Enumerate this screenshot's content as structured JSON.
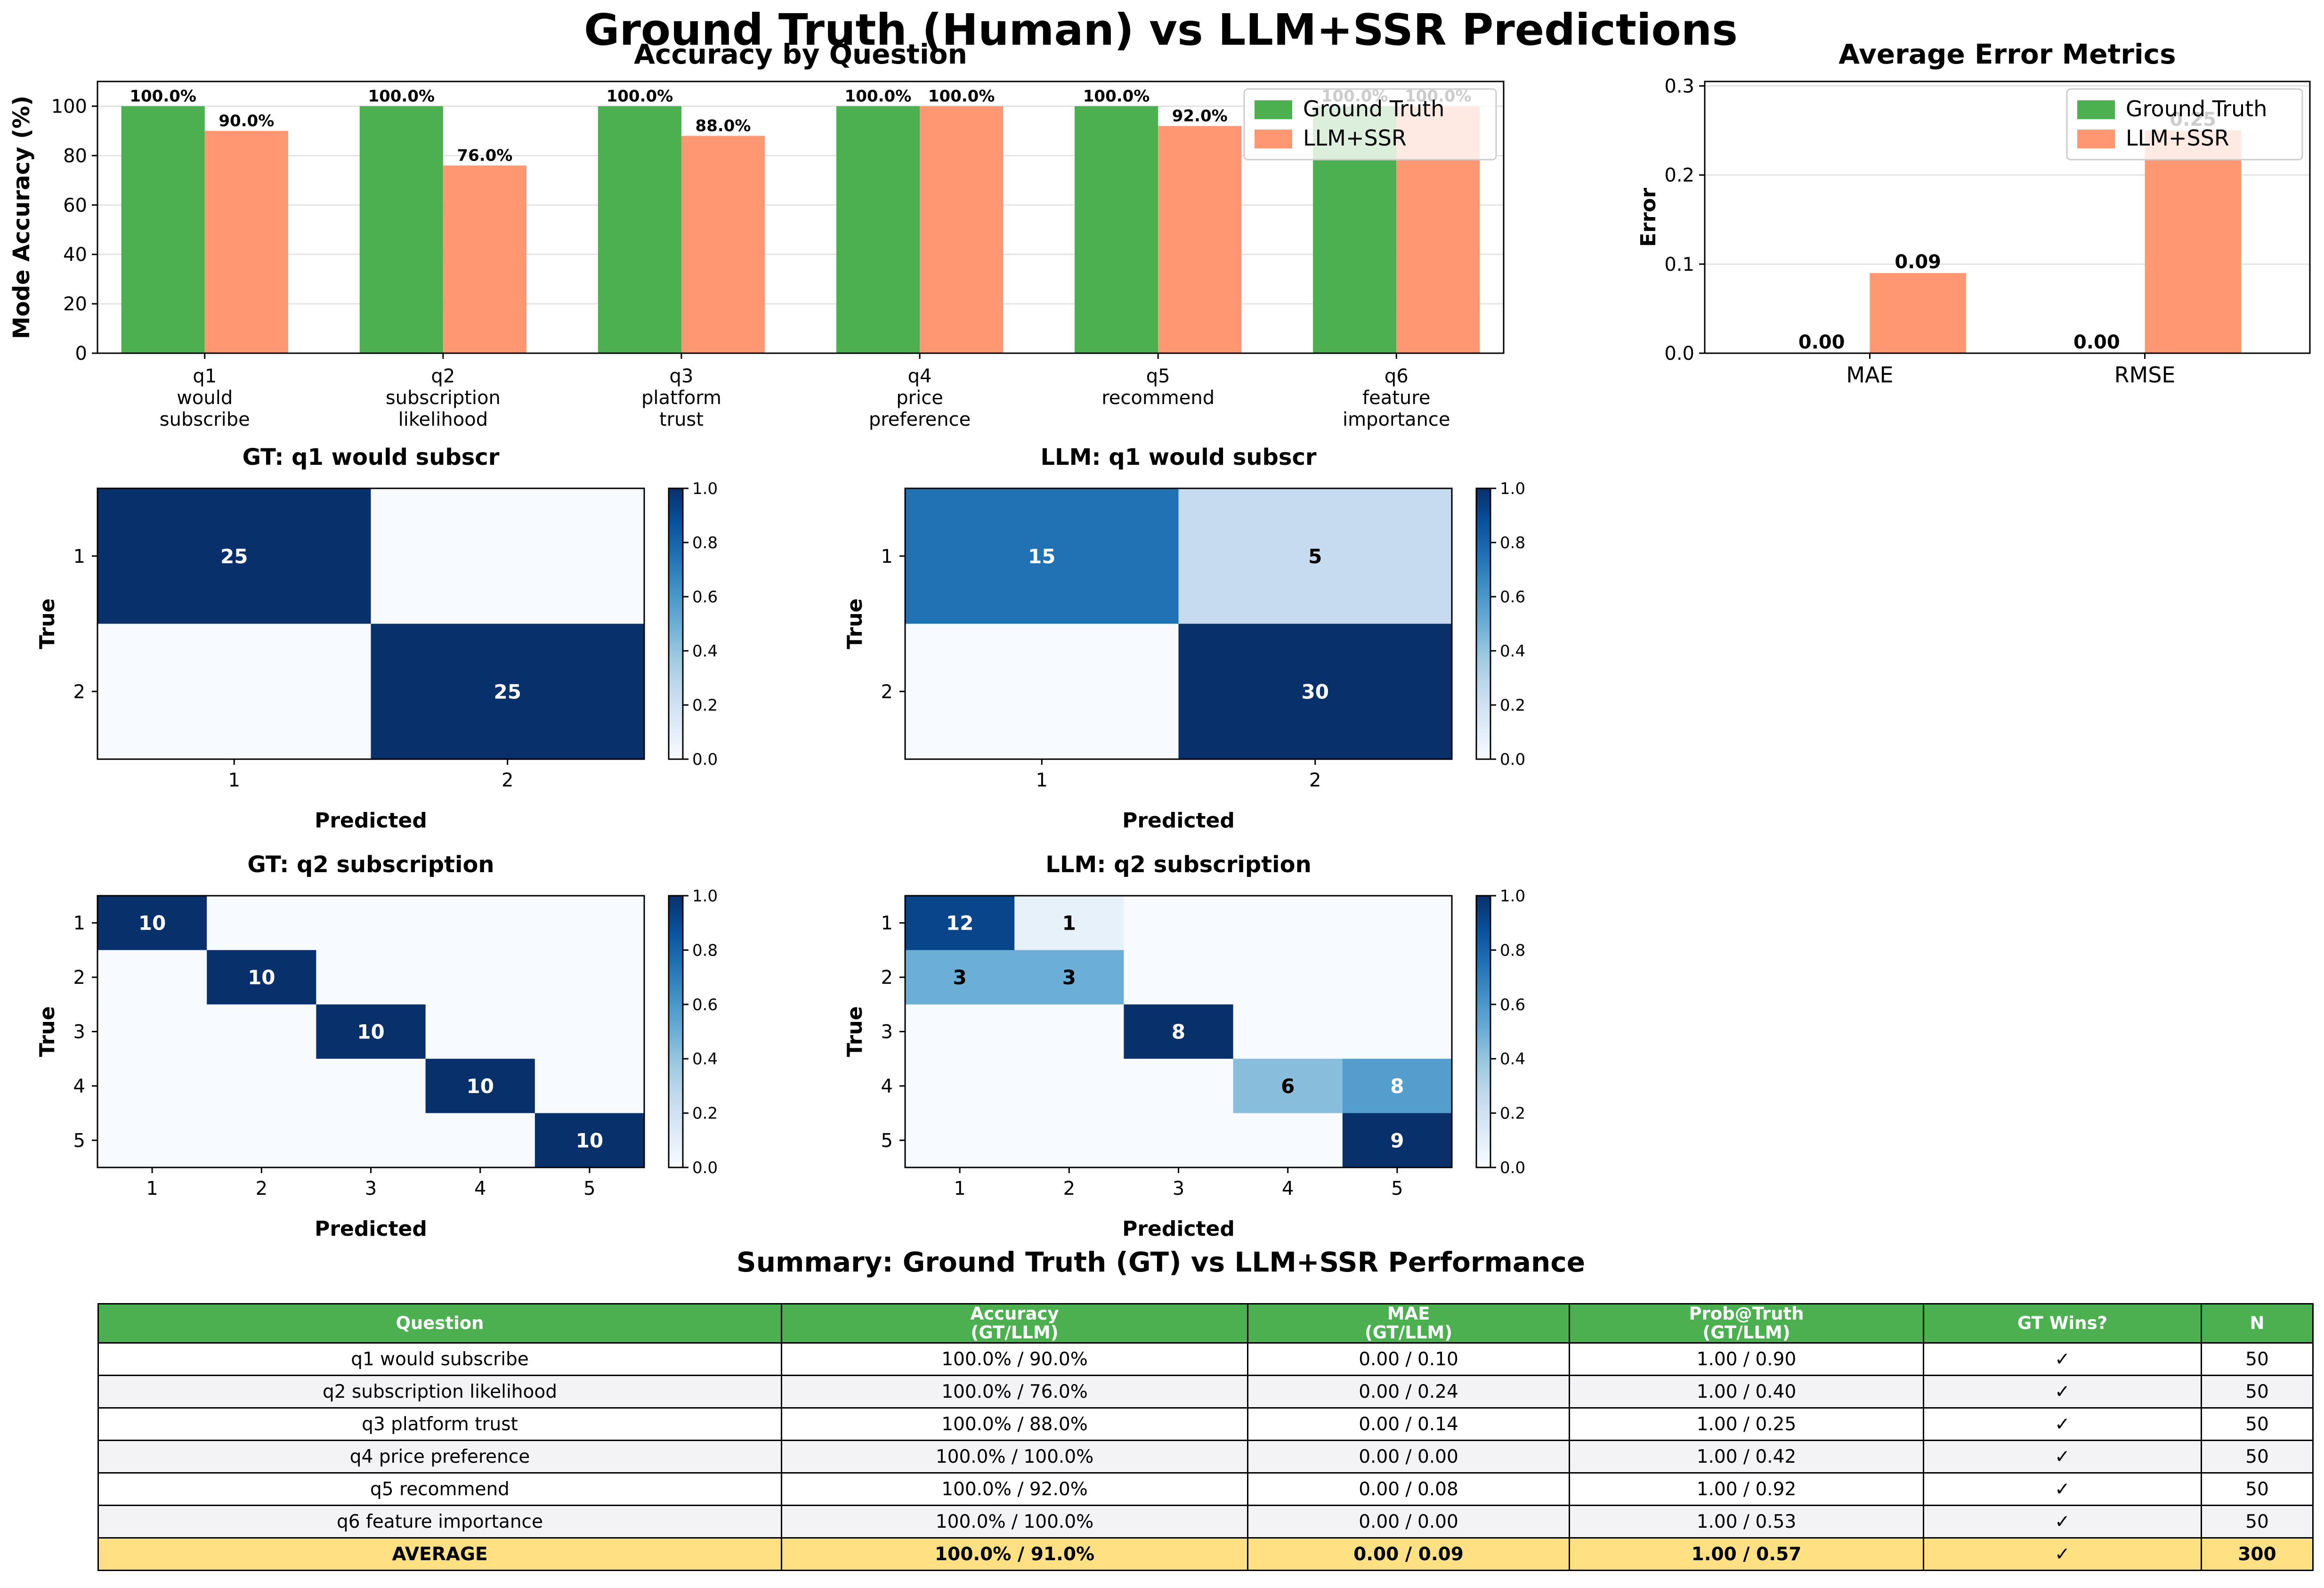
{
  "figure_title": "Ground Truth (Human) vs LLM+SSR Predictions",
  "colors": {
    "ground_truth": "#4caf50",
    "llm": "#ff9872",
    "cm_low": "#f7fbff",
    "cm_high": "#08306b",
    "avg_row": "#ffe082"
  },
  "chart_data": [
    {
      "id": "accuracy",
      "type": "bar",
      "title": "Accuracy by Question",
      "xlabel": "",
      "ylabel": "Mode Accuracy (%)",
      "ylim": [
        0,
        110
      ],
      "yticks": [
        0,
        20,
        40,
        60,
        80,
        100
      ],
      "grid": true,
      "legend": "top-right",
      "categories": [
        "q1\nwould\nsubscribe",
        "q2\nsubscription\nlikelihood",
        "q3\nplatform\ntrust",
        "q4\nprice\npreference",
        "q5\nrecommend",
        "q6\nfeature\nimportance"
      ],
      "series": [
        {
          "name": "Ground Truth",
          "values": [
            100.0,
            100.0,
            100.0,
            100.0,
            100.0,
            100.0
          ],
          "labels": [
            "100.0%",
            "100.0%",
            "100.0%",
            "100.0%",
            "100.0%",
            "100.0%"
          ]
        },
        {
          "name": "LLM+SSR",
          "values": [
            90.0,
            76.0,
            88.0,
            100.0,
            92.0,
            100.0
          ],
          "labels": [
            "90.0%",
            "76.0%",
            "88.0%",
            "100.0%",
            "92.0%",
            "100.0%"
          ]
        }
      ]
    },
    {
      "id": "errors",
      "type": "bar",
      "title": "Average Error Metrics",
      "xlabel": "",
      "ylabel": "Error",
      "ylim": [
        0,
        0.305
      ],
      "yticks": [
        0.0,
        0.1,
        0.2,
        0.3
      ],
      "grid": true,
      "legend": "top-right",
      "categories": [
        "MAE",
        "RMSE"
      ],
      "series": [
        {
          "name": "Ground Truth",
          "values": [
            0.0,
            0.0
          ],
          "labels": [
            "0.00",
            "0.00"
          ]
        },
        {
          "name": "LLM+SSR",
          "values": [
            0.09,
            0.25
          ],
          "labels": [
            "0.09",
            "0.25"
          ]
        }
      ]
    },
    {
      "id": "cm_gt_q1",
      "type": "heatmap",
      "title": "GT: q1 would subscr",
      "xlabel": "Predicted",
      "ylabel": "True",
      "labels": [
        "1",
        "2"
      ],
      "colorbar_ticks": [
        "0.0",
        "0.2",
        "0.4",
        "0.6",
        "0.8",
        "1.0"
      ],
      "matrix": [
        [
          25,
          0
        ],
        [
          0,
          25
        ]
      ],
      "shown_cells": [
        [
          1,
          0
        ],
        [
          0,
          1
        ]
      ],
      "intensity": [
        [
          1.0,
          0.0
        ],
        [
          0.0,
          1.0
        ]
      ]
    },
    {
      "id": "cm_llm_q1",
      "type": "heatmap",
      "title": "LLM: q1 would subscr",
      "xlabel": "Predicted",
      "ylabel": "True",
      "labels": [
        "1",
        "2"
      ],
      "colorbar_ticks": [
        "0.0",
        "0.2",
        "0.4",
        "0.6",
        "0.8",
        "1.0"
      ],
      "matrix": [
        [
          15,
          5
        ],
        [
          0,
          30
        ]
      ],
      "shown_cells": [
        [
          1,
          1
        ],
        [
          0,
          1
        ]
      ],
      "intensity": [
        [
          0.75,
          0.25
        ],
        [
          0.0,
          1.0
        ]
      ]
    },
    {
      "id": "cm_gt_q2",
      "type": "heatmap",
      "title": "GT: q2 subscription",
      "xlabel": "Predicted",
      "ylabel": "True",
      "labels": [
        "1",
        "2",
        "3",
        "4",
        "5"
      ],
      "colorbar_ticks": [
        "0.0",
        "0.2",
        "0.4",
        "0.6",
        "0.8",
        "1.0"
      ],
      "matrix": [
        [
          10,
          0,
          0,
          0,
          0
        ],
        [
          0,
          10,
          0,
          0,
          0
        ],
        [
          0,
          0,
          10,
          0,
          0
        ],
        [
          0,
          0,
          0,
          10,
          0
        ],
        [
          0,
          0,
          0,
          0,
          10
        ]
      ],
      "shown_cells": [
        [
          1,
          0,
          0,
          0,
          0
        ],
        [
          0,
          1,
          0,
          0,
          0
        ],
        [
          0,
          0,
          1,
          0,
          0
        ],
        [
          0,
          0,
          0,
          1,
          0
        ],
        [
          0,
          0,
          0,
          0,
          1
        ]
      ],
      "intensity": [
        [
          1,
          0,
          0,
          0,
          0
        ],
        [
          0,
          1,
          0,
          0,
          0
        ],
        [
          0,
          0,
          1,
          0,
          0
        ],
        [
          0,
          0,
          0,
          1,
          0
        ],
        [
          0,
          0,
          0,
          0,
          1
        ]
      ]
    },
    {
      "id": "cm_llm_q2",
      "type": "heatmap",
      "title": "LLM: q2 subscription",
      "xlabel": "Predicted",
      "ylabel": "True",
      "labels": [
        "1",
        "2",
        "3",
        "4",
        "5"
      ],
      "colorbar_ticks": [
        "0.0",
        "0.2",
        "0.4",
        "0.6",
        "0.8",
        "1.0"
      ],
      "matrix": [
        [
          12,
          1,
          0,
          0,
          0
        ],
        [
          3,
          3,
          0,
          0,
          0
        ],
        [
          0,
          0,
          8,
          0,
          0
        ],
        [
          0,
          0,
          0,
          6,
          8
        ],
        [
          0,
          0,
          0,
          0,
          9
        ]
      ],
      "shown_cells": [
        [
          1,
          1,
          0,
          0,
          0
        ],
        [
          1,
          1,
          0,
          0,
          0
        ],
        [
          0,
          0,
          1,
          0,
          0
        ],
        [
          0,
          0,
          0,
          1,
          1
        ],
        [
          0,
          0,
          0,
          0,
          1
        ]
      ],
      "intensity": [
        [
          0.92,
          0.08,
          0,
          0,
          0
        ],
        [
          0.5,
          0.5,
          0,
          0,
          0
        ],
        [
          0,
          0,
          1.0,
          0,
          0
        ],
        [
          0,
          0,
          0,
          0.43,
          0.57
        ],
        [
          0,
          0,
          0,
          0,
          1.0
        ]
      ]
    }
  ],
  "summary": {
    "title": "Summary: Ground Truth (GT) vs LLM+SSR Performance",
    "headers": [
      "Question",
      "Accuracy\n(GT/LLM)",
      "MAE\n(GT/LLM)",
      "Prob@Truth\n(GT/LLM)",
      "GT Wins?",
      "N"
    ],
    "rows": [
      [
        "q1 would subscribe",
        "100.0% / 90.0%",
        "0.00 / 0.10",
        "1.00 / 0.90",
        "✓",
        "50"
      ],
      [
        "q2 subscription likelihood",
        "100.0% / 76.0%",
        "0.00 / 0.24",
        "1.00 / 0.40",
        "✓",
        "50"
      ],
      [
        "q3 platform trust",
        "100.0% / 88.0%",
        "0.00 / 0.14",
        "1.00 / 0.25",
        "✓",
        "50"
      ],
      [
        "q4 price preference",
        "100.0% / 100.0%",
        "0.00 / 0.00",
        "1.00 / 0.42",
        "✓",
        "50"
      ],
      [
        "q5 recommend",
        "100.0% / 92.0%",
        "0.00 / 0.08",
        "1.00 / 0.92",
        "✓",
        "50"
      ],
      [
        "q6 feature importance",
        "100.0% / 100.0%",
        "0.00 / 0.00",
        "1.00 / 0.53",
        "✓",
        "50"
      ]
    ],
    "average_row": [
      "AVERAGE",
      "100.0% / 91.0%",
      "0.00 / 0.09",
      "1.00 / 0.57",
      "✓",
      "300"
    ]
  }
}
